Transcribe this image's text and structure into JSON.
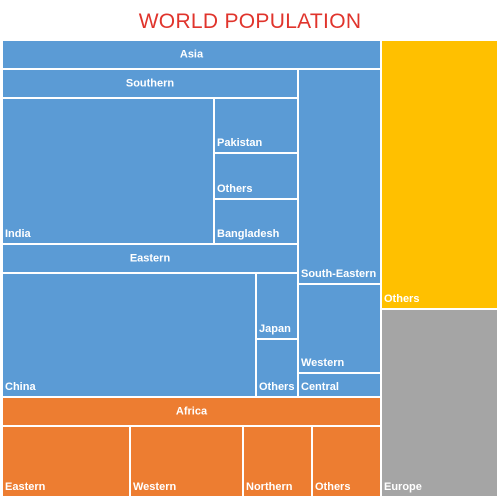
{
  "chart_data": {
    "type": "treemap",
    "title": "WORLD POPULATION",
    "colors": {
      "asia": "#5b9bd5",
      "africa": "#ed7d31",
      "others": "#ffc000",
      "europe": "#a5a5a5"
    },
    "labels": {
      "asia": "Asia",
      "southern": "Southern",
      "india": "India",
      "pakistan": "Pakistan",
      "southern_others": "Others",
      "bangladesh": "Bangladesh",
      "eastern": "Eastern",
      "china": "China",
      "japan": "Japan",
      "eastern_others": "Others",
      "south_eastern": "South-Eastern",
      "western": "Western",
      "central": "Central",
      "africa": "Africa",
      "africa_eastern": "Eastern",
      "africa_western": "Western",
      "africa_northern": "Northern",
      "africa_others": "Others",
      "others": "Others",
      "europe": "Europe"
    }
  }
}
